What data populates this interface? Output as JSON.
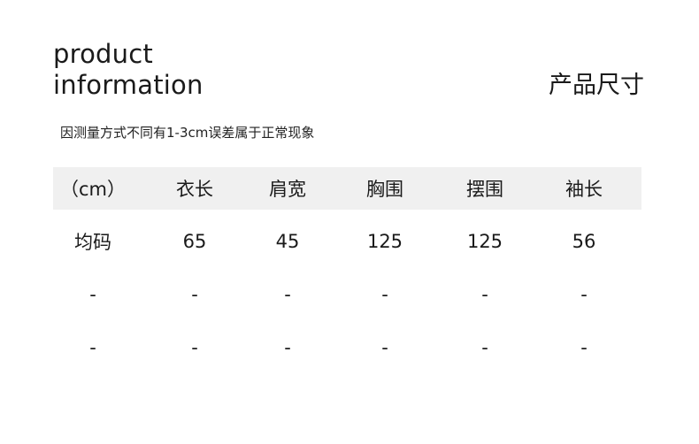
{
  "title_en_line1": "product",
  "title_en_line2": "information",
  "title_cn": "产品尺寸",
  "note": "因测量方式不同有1-3cm误差属于正常现象",
  "colors": {
    "header_bg": "#f0f0f0",
    "text": "#1a1a1a"
  },
  "table": {
    "headers": [
      "（cm）",
      "衣长",
      "肩宽",
      "胸围",
      "摆围",
      "袖长"
    ],
    "rows": [
      [
        "均码",
        "65",
        "45",
        "125",
        "125",
        "56"
      ],
      [
        "-",
        "-",
        "-",
        "-",
        "-",
        "-"
      ],
      [
        "-",
        "-",
        "-",
        "-",
        "-",
        "-"
      ]
    ]
  }
}
